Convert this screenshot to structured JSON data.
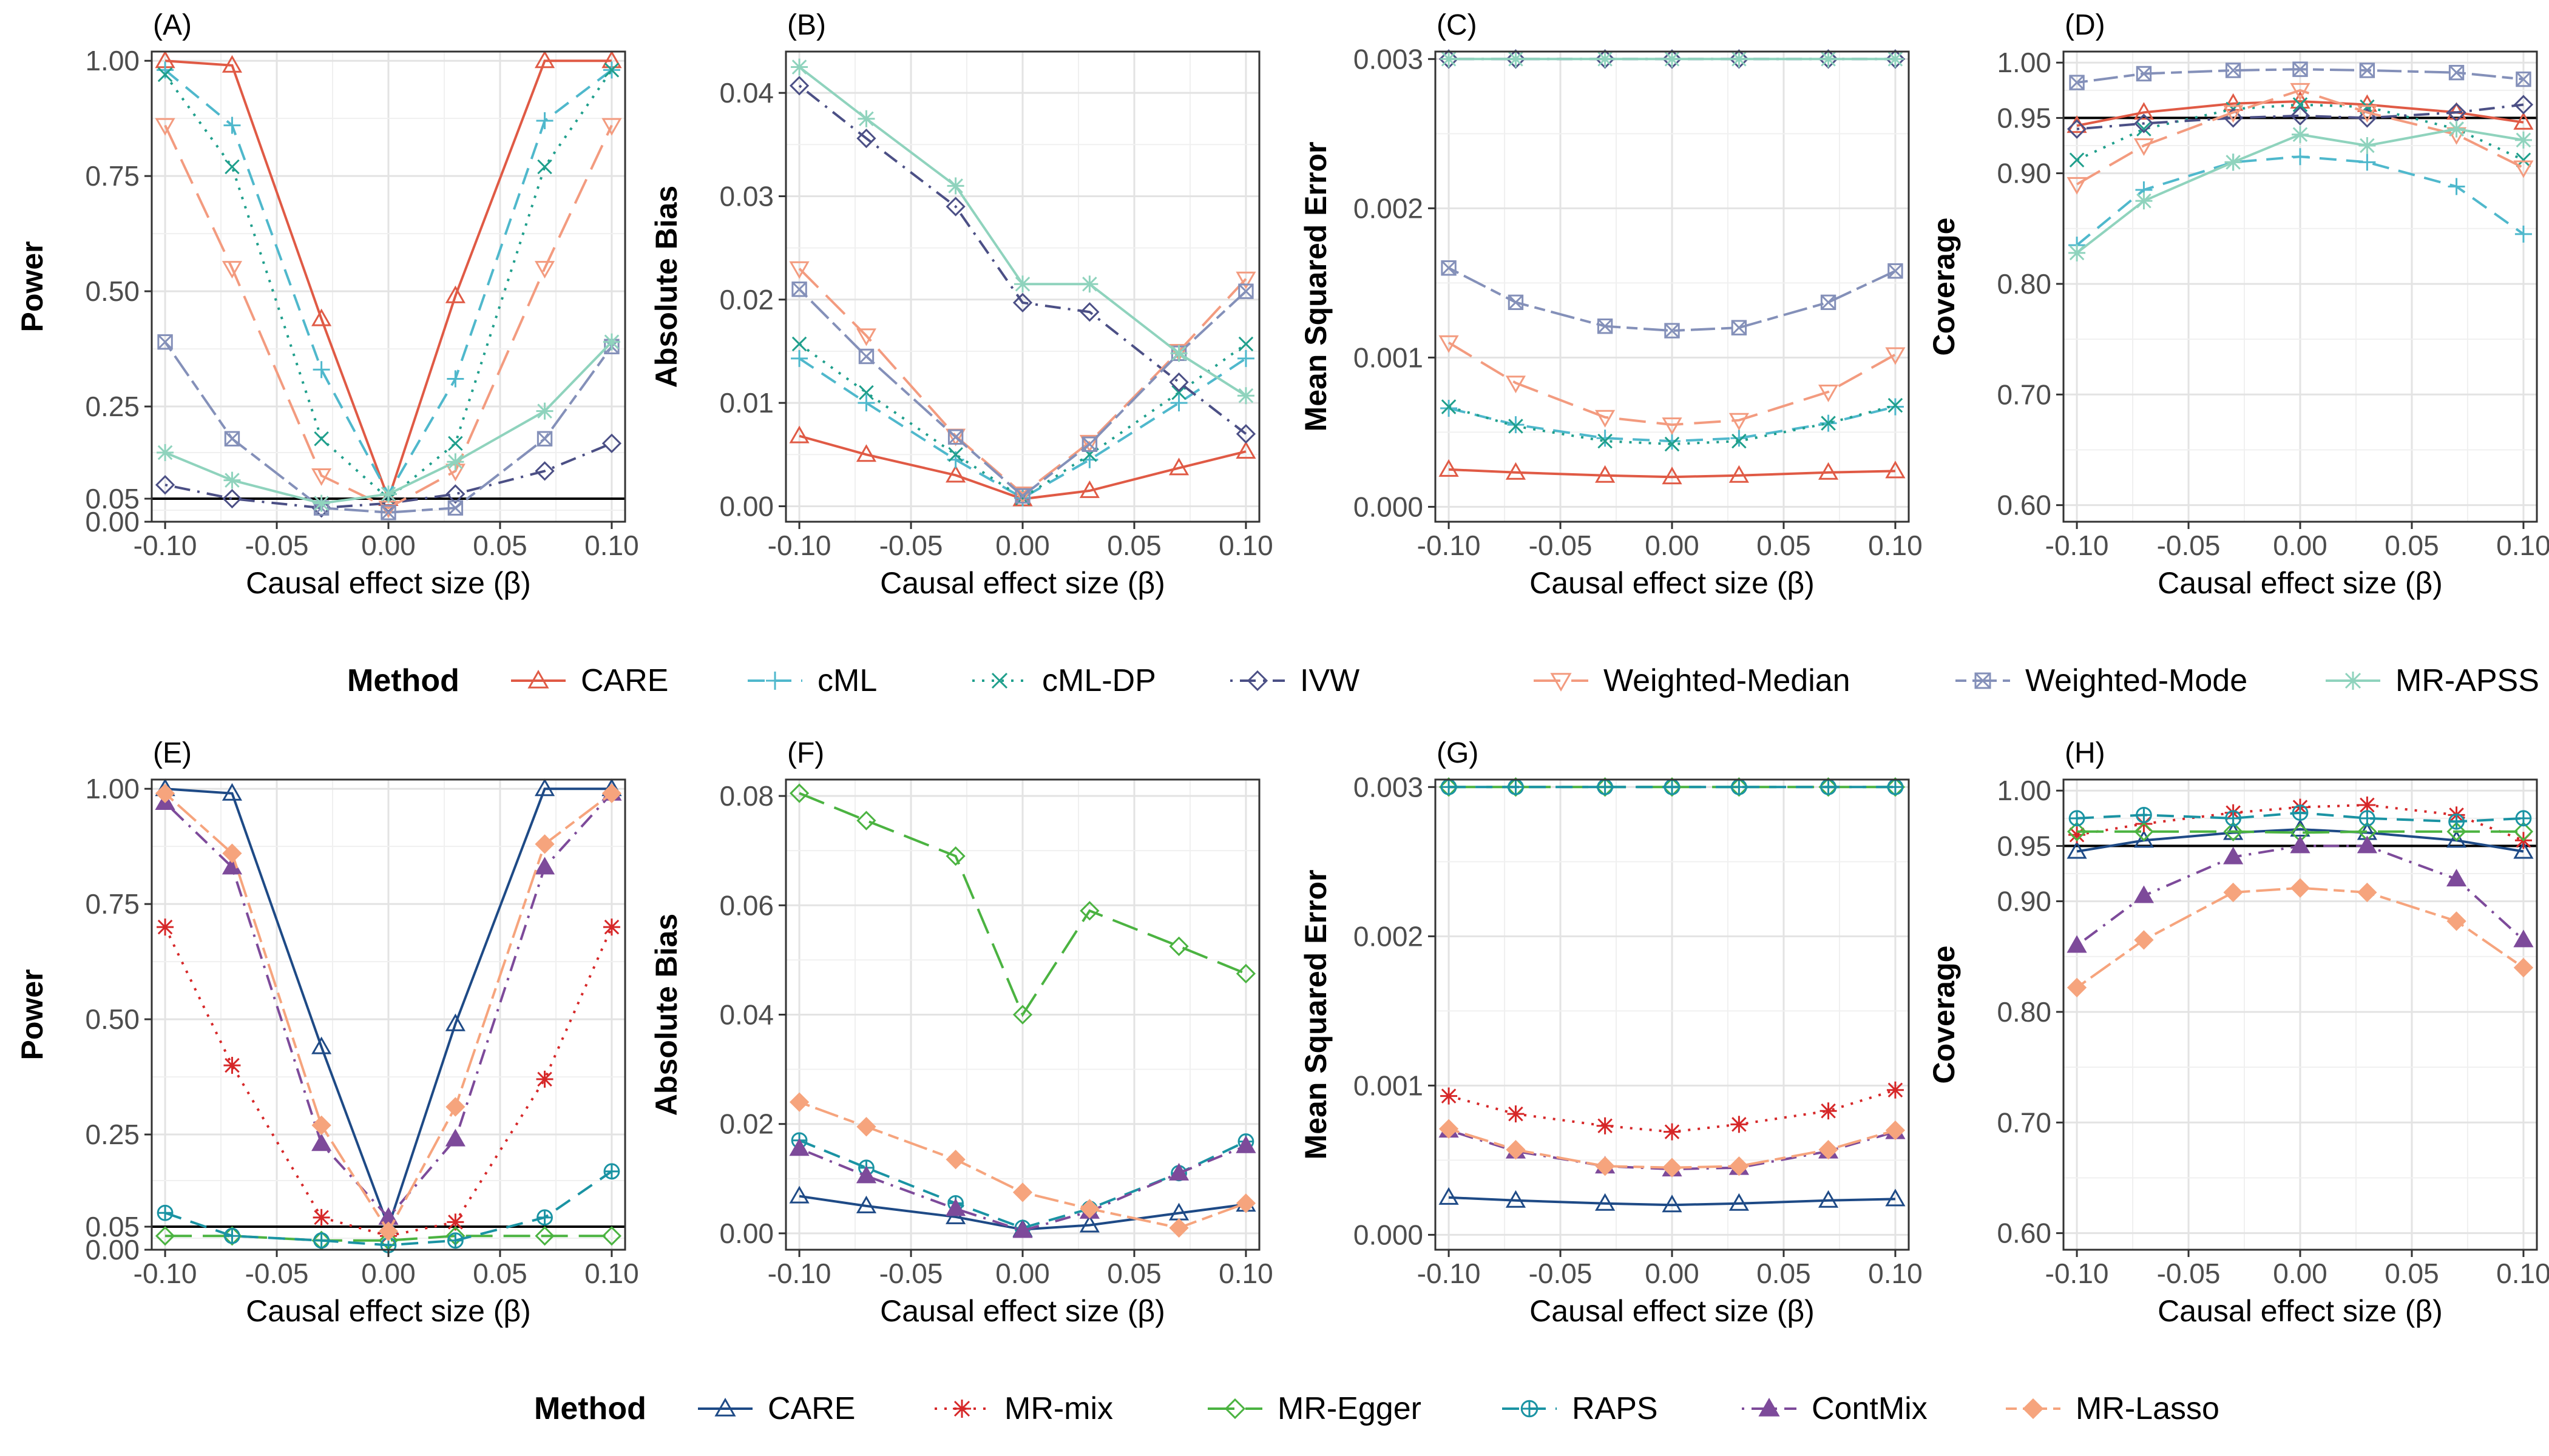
{
  "colors": {
    "CARE": "#e05a45",
    "cML": "#4fb8cc",
    "cML-DP": "#1f9f8c",
    "IVW": "#4b4f85",
    "Weighted-Median": "#f39b7f",
    "Weighted-Mode": "#8490b9",
    "MR-APSS": "#8fd3bd",
    "CARE2": "#1e4a86",
    "MR-mix": "#d62728",
    "MR-Egger": "#4bb341",
    "RAPS": "#1a93a3",
    "ContMix": "#7d4a9a",
    "MR-Lasso": "#f6a47d"
  },
  "legend1": {
    "title": "Method",
    "items": [
      {
        "label": "CARE",
        "key": "CARE",
        "marker": "triangle",
        "dash": "solid"
      },
      {
        "label": "cML",
        "key": "cML",
        "marker": "plus",
        "dash": "dashed"
      },
      {
        "label": "cML-DP",
        "key": "cML-DP",
        "marker": "x",
        "dash": "dotted"
      },
      {
        "label": "IVW",
        "key": "IVW",
        "marker": "diamond",
        "dash": "dotdash"
      },
      {
        "label": "Weighted-Median",
        "key": "Weighted-Median",
        "marker": "triangle-down",
        "dash": "longdash"
      },
      {
        "label": "Weighted-Mode",
        "key": "Weighted-Mode",
        "marker": "square-x",
        "dash": "twodash"
      },
      {
        "label": "MR-APSS",
        "key": "MR-APSS",
        "marker": "asterisk",
        "dash": "solid"
      }
    ]
  },
  "legend2": {
    "title": "Method",
    "items": [
      {
        "label": "CARE",
        "key": "CARE2",
        "marker": "triangle",
        "dash": "solid"
      },
      {
        "label": "MR-mix",
        "key": "MR-mix",
        "marker": "asterisk",
        "dash": "dotted"
      },
      {
        "label": "MR-Egger",
        "key": "MR-Egger",
        "marker": "diamond",
        "dash": "longdash"
      },
      {
        "label": "RAPS",
        "key": "RAPS",
        "marker": "circle-plus",
        "dash": "dashed"
      },
      {
        "label": "ContMix",
        "key": "ContMix",
        "marker": "triangle-filled",
        "dash": "dotdash"
      },
      {
        "label": "MR-Lasso",
        "key": "MR-Lasso",
        "marker": "diamond-filled",
        "dash": "twodash"
      }
    ]
  },
  "chart_data": [
    {
      "panel": "(A)",
      "type": "line",
      "xlabel": "Causal effect size (β)",
      "ylabel": "Power",
      "x": [
        -0.1,
        -0.07,
        -0.03,
        0,
        0.03,
        0.07,
        0.1
      ],
      "xticks": [
        "-0.10",
        "-0.05",
        "0.00",
        "0.05",
        "0.10"
      ],
      "ylim": [
        0,
        1.02
      ],
      "yticks": [
        {
          "v": 0,
          "l": "0.00"
        },
        {
          "v": 0.05,
          "l": "0.05"
        },
        {
          "v": 0.25,
          "l": "0.25"
        },
        {
          "v": 0.5,
          "l": "0.50"
        },
        {
          "v": 0.75,
          "l": "0.75"
        },
        {
          "v": 1,
          "l": "1.00"
        }
      ],
      "hline": 0.05,
      "series": [
        {
          "key": "CARE",
          "values": [
            1.0,
            0.99,
            0.44,
            0.05,
            0.49,
            1.0,
            1.0
          ]
        },
        {
          "key": "cML",
          "values": [
            0.98,
            0.86,
            0.33,
            0.06,
            0.31,
            0.87,
            0.98
          ]
        },
        {
          "key": "cML-DP",
          "values": [
            0.97,
            0.77,
            0.18,
            0.05,
            0.17,
            0.77,
            0.98
          ]
        },
        {
          "key": "IVW",
          "values": [
            0.08,
            0.05,
            0.03,
            0.04,
            0.06,
            0.11,
            0.17
          ]
        },
        {
          "key": "Weighted-Median",
          "values": [
            0.86,
            0.55,
            0.1,
            0.03,
            0.11,
            0.55,
            0.86
          ]
        },
        {
          "key": "Weighted-Mode",
          "values": [
            0.39,
            0.18,
            0.03,
            0.02,
            0.03,
            0.18,
            0.38
          ]
        },
        {
          "key": "MR-APSS",
          "values": [
            0.15,
            0.09,
            0.04,
            0.06,
            0.13,
            0.24,
            0.39
          ]
        }
      ]
    },
    {
      "panel": "(B)",
      "type": "line",
      "xlabel": "Causal effect size (β)",
      "ylabel": "Absolute Bias",
      "x": [
        -0.1,
        -0.07,
        -0.03,
        0,
        0.03,
        0.07,
        0.1
      ],
      "xticks": [
        "-0.10",
        "-0.05",
        "0.00",
        "0.05",
        "0.10"
      ],
      "ylim": [
        -0.0015,
        0.044
      ],
      "yticks": [
        {
          "v": 0,
          "l": "0.00"
        },
        {
          "v": 0.01,
          "l": "0.01"
        },
        {
          "v": 0.02,
          "l": "0.02"
        },
        {
          "v": 0.03,
          "l": "0.03"
        },
        {
          "v": 0.04,
          "l": "0.04"
        }
      ],
      "series": [
        {
          "key": "CARE",
          "values": [
            0.0068,
            0.005,
            0.003,
            0.0007,
            0.0015,
            0.0037,
            0.0053
          ]
        },
        {
          "key": "cML",
          "values": [
            0.0143,
            0.01,
            0.0045,
            0.0008,
            0.0045,
            0.01,
            0.0143
          ]
        },
        {
          "key": "cML-DP",
          "values": [
            0.0157,
            0.011,
            0.005,
            0.0008,
            0.005,
            0.011,
            0.0157
          ]
        },
        {
          "key": "IVW",
          "values": [
            0.0407,
            0.0356,
            0.029,
            0.0197,
            0.0188,
            0.012,
            0.007
          ]
        },
        {
          "key": "Weighted-Median",
          "values": [
            0.023,
            0.0165,
            0.0068,
            0.0012,
            0.0062,
            0.015,
            0.022
          ]
        },
        {
          "key": "Weighted-Mode",
          "values": [
            0.021,
            0.0145,
            0.0067,
            0.001,
            0.006,
            0.0148,
            0.0208
          ]
        },
        {
          "key": "MR-APSS",
          "values": [
            0.0425,
            0.0375,
            0.031,
            0.0215,
            0.0215,
            0.0148,
            0.0107
          ]
        }
      ]
    },
    {
      "panel": "(C)",
      "type": "line",
      "xlabel": "Causal effect size (β)",
      "ylabel": "Mean Squared Error",
      "x": [
        -0.1,
        -0.07,
        -0.03,
        0,
        0.03,
        0.07,
        0.1
      ],
      "xticks": [
        "-0.10",
        "-0.05",
        "0.00",
        "0.05",
        "0.10"
      ],
      "ylim": [
        -0.0001,
        0.00305
      ],
      "yticks": [
        {
          "v": 0,
          "l": "0.000"
        },
        {
          "v": 0.001,
          "l": "0.001"
        },
        {
          "v": 0.002,
          "l": "0.002"
        },
        {
          "v": 0.003,
          "l": "0.003"
        }
      ],
      "series": [
        {
          "key": "CARE",
          "values": [
            0.00025,
            0.00023,
            0.00021,
            0.0002,
            0.00021,
            0.00023,
            0.00024
          ]
        },
        {
          "key": "cML",
          "values": [
            0.00066,
            0.00055,
            0.00046,
            0.00044,
            0.00046,
            0.00056,
            0.00067
          ]
        },
        {
          "key": "cML-DP",
          "values": [
            0.00067,
            0.00054,
            0.00044,
            0.00042,
            0.00044,
            0.00056,
            0.00068
          ]
        },
        {
          "key": "IVW",
          "values": [
            0.003,
            0.003,
            0.003,
            0.003,
            0.003,
            0.003,
            0.003
          ]
        },
        {
          "key": "Weighted-Median",
          "values": [
            0.0011,
            0.00083,
            0.0006,
            0.00055,
            0.00058,
            0.00077,
            0.00102
          ]
        },
        {
          "key": "Weighted-Mode",
          "values": [
            0.0016,
            0.00137,
            0.00121,
            0.00118,
            0.0012,
            0.00137,
            0.00158
          ]
        },
        {
          "key": "MR-APSS",
          "values": [
            0.003,
            0.003,
            0.003,
            0.003,
            0.003,
            0.003,
            0.003
          ]
        }
      ]
    },
    {
      "panel": "(D)",
      "type": "line",
      "xlabel": "Causal effect size (β)",
      "ylabel": "Coverage",
      "x": [
        -0.1,
        -0.07,
        -0.03,
        0,
        0.03,
        0.07,
        0.1
      ],
      "xticks": [
        "-0.10",
        "-0.05",
        "0.00",
        "0.05",
        "0.10"
      ],
      "ylim": [
        0.585,
        1.01
      ],
      "yticks": [
        {
          "v": 0.6,
          "l": "0.60"
        },
        {
          "v": 0.7,
          "l": "0.70"
        },
        {
          "v": 0.8,
          "l": "0.80"
        },
        {
          "v": 0.9,
          "l": "0.90"
        },
        {
          "v": 0.95,
          "l": "0.95"
        },
        {
          "v": 1,
          "l": "1.00"
        }
      ],
      "hline": 0.95,
      "series": [
        {
          "key": "CARE",
          "values": [
            0.943,
            0.955,
            0.963,
            0.965,
            0.962,
            0.955,
            0.946
          ]
        },
        {
          "key": "cML",
          "values": [
            0.835,
            0.885,
            0.91,
            0.915,
            0.91,
            0.888,
            0.845
          ]
        },
        {
          "key": "cML-DP",
          "values": [
            0.912,
            0.94,
            0.958,
            0.962,
            0.96,
            0.94,
            0.912
          ]
        },
        {
          "key": "IVW",
          "values": [
            0.94,
            0.945,
            0.95,
            0.952,
            0.95,
            0.955,
            0.962
          ]
        },
        {
          "key": "Weighted-Median",
          "values": [
            0.89,
            0.925,
            0.955,
            0.975,
            0.955,
            0.935,
            0.905
          ]
        },
        {
          "key": "Weighted-Mode",
          "values": [
            0.982,
            0.99,
            0.993,
            0.994,
            0.993,
            0.991,
            0.985
          ]
        },
        {
          "key": "MR-APSS",
          "values": [
            0.828,
            0.875,
            0.91,
            0.935,
            0.925,
            0.94,
            0.93
          ]
        }
      ]
    },
    {
      "panel": "(E)",
      "type": "line",
      "xlabel": "Causal effect size (β)",
      "ylabel": "Power",
      "x": [
        -0.1,
        -0.07,
        -0.03,
        0,
        0.03,
        0.07,
        0.1
      ],
      "xticks": [
        "-0.10",
        "-0.05",
        "0.00",
        "0.05",
        "0.10"
      ],
      "ylim": [
        0,
        1.02
      ],
      "yticks": [
        {
          "v": 0,
          "l": "0.00"
        },
        {
          "v": 0.05,
          "l": "0.05"
        },
        {
          "v": 0.25,
          "l": "0.25"
        },
        {
          "v": 0.5,
          "l": "0.50"
        },
        {
          "v": 0.75,
          "l": "0.75"
        },
        {
          "v": 1,
          "l": "1.00"
        }
      ],
      "hline": 0.05,
      "series": [
        {
          "key": "CARE2",
          "values": [
            1.0,
            0.99,
            0.44,
            0.05,
            0.49,
            1.0,
            1.0
          ]
        },
        {
          "key": "MR-mix",
          "values": [
            0.7,
            0.4,
            0.07,
            0.03,
            0.06,
            0.37,
            0.7
          ]
        },
        {
          "key": "MR-Egger",
          "values": [
            0.03,
            0.03,
            0.02,
            0.02,
            0.03,
            0.03,
            0.03
          ]
        },
        {
          "key": "RAPS",
          "values": [
            0.08,
            0.03,
            0.02,
            0.01,
            0.02,
            0.07,
            0.17
          ]
        },
        {
          "key": "ContMix",
          "values": [
            0.97,
            0.83,
            0.23,
            0.07,
            0.24,
            0.83,
            0.99
          ]
        },
        {
          "key": "MR-Lasso",
          "values": [
            0.99,
            0.86,
            0.27,
            0.04,
            0.31,
            0.88,
            0.99
          ]
        }
      ]
    },
    {
      "panel": "(F)",
      "type": "line",
      "xlabel": "Causal effect size (β)",
      "ylabel": "Absolute Bias",
      "x": [
        -0.1,
        -0.07,
        -0.03,
        0,
        0.03,
        0.07,
        0.1
      ],
      "xticks": [
        "-0.10",
        "-0.05",
        "0.00",
        "0.05",
        "0.10"
      ],
      "ylim": [
        -0.003,
        0.083
      ],
      "yticks": [
        {
          "v": 0,
          "l": "0.00"
        },
        {
          "v": 0.02,
          "l": "0.02"
        },
        {
          "v": 0.04,
          "l": "0.04"
        },
        {
          "v": 0.06,
          "l": "0.06"
        },
        {
          "v": 0.08,
          "l": "0.08"
        }
      ],
      "series": [
        {
          "key": "CARE2",
          "values": [
            0.0068,
            0.005,
            0.003,
            0.0007,
            0.0015,
            0.0037,
            0.0053
          ]
        },
        {
          "key": "MR-Egger",
          "values": [
            0.0805,
            0.0755,
            0.069,
            0.04,
            0.059,
            0.0525,
            0.0475
          ]
        },
        {
          "key": "RAPS",
          "values": [
            0.017,
            0.012,
            0.0055,
            0.001,
            0.0045,
            0.011,
            0.0168
          ]
        },
        {
          "key": "ContMix",
          "values": [
            0.0155,
            0.0105,
            0.0045,
            0.0005,
            0.004,
            0.011,
            0.016
          ]
        },
        {
          "key": "MR-Lasso",
          "values": [
            0.024,
            0.0195,
            0.0135,
            0.0075,
            0.0045,
            0.001,
            0.0055
          ]
        }
      ]
    },
    {
      "panel": "(G)",
      "type": "line",
      "xlabel": "Causal effect size (β)",
      "ylabel": "Mean Squared Error",
      "x": [
        -0.1,
        -0.07,
        -0.03,
        0,
        0.03,
        0.07,
        0.1
      ],
      "xticks": [
        "-0.10",
        "-0.05",
        "0.00",
        "0.05",
        "0.10"
      ],
      "ylim": [
        -0.0001,
        0.00305
      ],
      "yticks": [
        {
          "v": 0,
          "l": "0.000"
        },
        {
          "v": 0.001,
          "l": "0.001"
        },
        {
          "v": 0.002,
          "l": "0.002"
        },
        {
          "v": 0.003,
          "l": "0.003"
        }
      ],
      "series": [
        {
          "key": "CARE2",
          "values": [
            0.00025,
            0.00023,
            0.00021,
            0.0002,
            0.00021,
            0.00023,
            0.00024
          ]
        },
        {
          "key": "MR-mix",
          "values": [
            0.00093,
            0.00081,
            0.00073,
            0.00069,
            0.00074,
            0.00083,
            0.00097
          ]
        },
        {
          "key": "MR-Egger",
          "values": [
            0.003,
            0.003,
            0.003,
            0.003,
            0.003,
            0.003,
            0.003
          ]
        },
        {
          "key": "RAPS",
          "values": [
            0.003,
            0.003,
            0.003,
            0.003,
            0.003,
            0.003,
            0.003
          ]
        },
        {
          "key": "ContMix",
          "values": [
            0.0007,
            0.00056,
            0.00046,
            0.00044,
            0.00045,
            0.00056,
            0.00069
          ]
        },
        {
          "key": "MR-Lasso",
          "values": [
            0.00071,
            0.00057,
            0.00046,
            0.00045,
            0.00046,
            0.00057,
            0.0007
          ]
        }
      ]
    },
    {
      "panel": "(H)",
      "type": "line",
      "xlabel": "Causal effect size (β)",
      "ylabel": "Coverage",
      "x": [
        -0.1,
        -0.07,
        -0.03,
        0,
        0.03,
        0.07,
        0.1
      ],
      "xticks": [
        "-0.10",
        "-0.05",
        "0.00",
        "0.05",
        "0.10"
      ],
      "ylim": [
        0.585,
        1.01
      ],
      "yticks": [
        {
          "v": 0.6,
          "l": "0.60"
        },
        {
          "v": 0.7,
          "l": "0.70"
        },
        {
          "v": 0.8,
          "l": "0.80"
        },
        {
          "v": 0.9,
          "l": "0.90"
        },
        {
          "v": 0.95,
          "l": "0.95"
        },
        {
          "v": 1,
          "l": "1.00"
        }
      ],
      "hline": 0.95,
      "series": [
        {
          "key": "CARE2",
          "values": [
            0.945,
            0.955,
            0.962,
            0.965,
            0.962,
            0.955,
            0.945
          ]
        },
        {
          "key": "MR-mix",
          "values": [
            0.96,
            0.97,
            0.98,
            0.985,
            0.987,
            0.978,
            0.955
          ]
        },
        {
          "key": "MR-Egger",
          "values": [
            0.963,
            0.963,
            0.963,
            0.962,
            0.963,
            0.963,
            0.963
          ]
        },
        {
          "key": "RAPS",
          "values": [
            0.975,
            0.978,
            0.975,
            0.98,
            0.975,
            0.972,
            0.975
          ]
        },
        {
          "key": "ContMix",
          "values": [
            0.86,
            0.905,
            0.94,
            0.95,
            0.95,
            0.92,
            0.865
          ]
        },
        {
          "key": "MR-Lasso",
          "values": [
            0.822,
            0.865,
            0.908,
            0.912,
            0.908,
            0.882,
            0.84
          ]
        }
      ]
    }
  ]
}
